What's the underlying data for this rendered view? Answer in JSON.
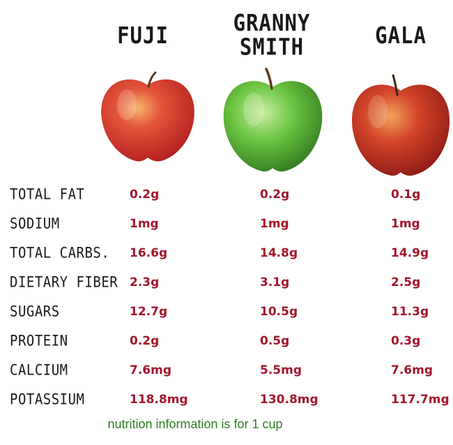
{
  "varieties": [
    {
      "name_line1": "FUJI",
      "name_line2": ""
    },
    {
      "name_line1": "GRANNY",
      "name_line2": "SMITH"
    },
    {
      "name_line1": "GALA",
      "name_line2": ""
    }
  ],
  "icons": [
    "fuji-apple-icon",
    "granny-smith-apple-icon",
    "gala-apple-icon"
  ],
  "colors": {
    "fuji": "#d93a32",
    "granny_smith": "#5fb53a",
    "gala": "#b7231c",
    "value_text": "#a3162b",
    "footnote_text": "#2e7d22"
  },
  "nutrients": [
    {
      "label": "TOTAL FAT",
      "values": [
        "0.2g",
        "0.2g",
        "0.1g"
      ]
    },
    {
      "label": "SODIUM",
      "values": [
        "1mg",
        "1mg",
        "1mg"
      ]
    },
    {
      "label": "TOTAL CARBS.",
      "values": [
        "16.6g",
        "14.8g",
        "14.9g"
      ]
    },
    {
      "label": "DIETARY FIBER",
      "values": [
        "2.3g",
        "3.1g",
        "2.5g"
      ]
    },
    {
      "label": "SUGARS",
      "values": [
        "12.7g",
        "10.5g",
        "11.3g"
      ]
    },
    {
      "label": "PROTEIN",
      "values": [
        "0.2g",
        "0.5g",
        "0.3g"
      ]
    },
    {
      "label": "CALCIUM",
      "values": [
        "7.6mg",
        "5.5mg",
        "7.6mg"
      ]
    },
    {
      "label": "POTASSIUM",
      "values": [
        "118.8mg",
        "130.8mg",
        "117.7mg"
      ]
    }
  ],
  "footnote": "nutrition information  is for 1 cup"
}
